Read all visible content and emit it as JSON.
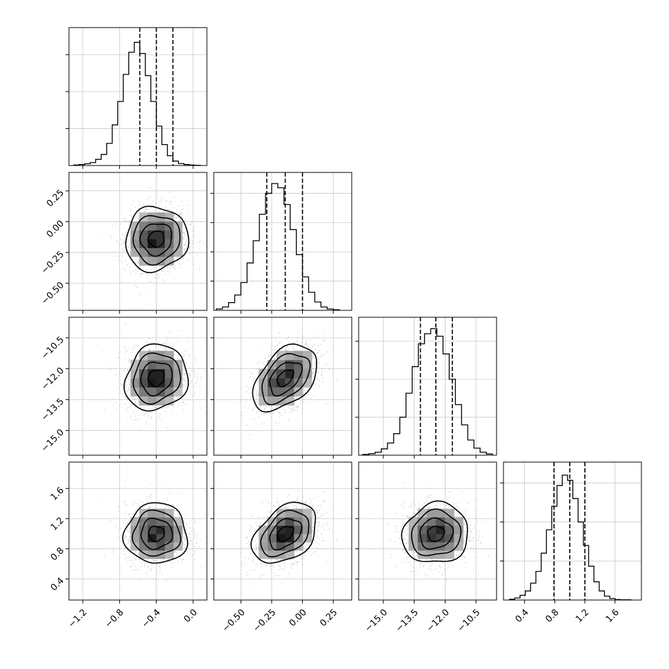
{
  "chart_data": {
    "type": "corner-plot",
    "grid": true,
    "colors": {
      "hist_line": "#000000",
      "contour": "#000000",
      "points": "#9a9a9a",
      "grid": "#c8c8c8",
      "axes": "#000000"
    },
    "parameters": [
      {
        "range": [
          -1.35,
          0.15
        ],
        "ticks": [
          -1.2,
          -0.8,
          -0.4,
          0.0
        ],
        "tick_labels": [
          "−1.2",
          "−0.8",
          "−0.4",
          "0.0"
        ],
        "mean": -0.4,
        "sigma": 0.17,
        "quantiles": [
          -0.58,
          -0.4,
          -0.22
        ],
        "hist": {
          "edges": [
            -1.3,
            -1.24,
            -1.18,
            -1.12,
            -1.06,
            -1.0,
            -0.94,
            -0.88,
            -0.82,
            -0.76,
            -0.7,
            -0.64,
            -0.58,
            -0.52,
            -0.46,
            -0.4,
            -0.34,
            -0.28,
            -0.22,
            -0.16,
            -0.1,
            -0.04,
            0.02,
            0.08
          ],
          "counts": [
            2,
            4,
            7,
            12,
            25,
            45,
            90,
            165,
            260,
            370,
            460,
            500,
            455,
            365,
            260,
            160,
            85,
            40,
            18,
            8,
            4,
            2,
            1
          ]
        },
        "hist_ylim": [
          0,
          560
        ],
        "hist_grid": [
          150,
          300,
          450
        ]
      },
      {
        "range": [
          -0.72,
          0.4
        ],
        "ticks": [
          -0.5,
          -0.25,
          0.0,
          0.25
        ],
        "tick_labels": [
          "−0.50",
          "−0.25",
          "0.00",
          "0.25"
        ],
        "mean": -0.14,
        "sigma": 0.13,
        "quantiles": [
          -0.29,
          -0.14,
          0.0
        ],
        "hist": {
          "edges": [
            -0.7,
            -0.65,
            -0.6,
            -0.55,
            -0.5,
            -0.45,
            -0.4,
            -0.35,
            -0.3,
            -0.25,
            -0.2,
            -0.15,
            -0.1,
            -0.05,
            0.0,
            0.05,
            0.1,
            0.15,
            0.2,
            0.25,
            0.3
          ],
          "counts": [
            5,
            12,
            28,
            55,
            100,
            170,
            250,
            345,
            420,
            455,
            440,
            380,
            290,
            200,
            120,
            65,
            30,
            12,
            5,
            2
          ]
        },
        "hist_ylim": [
          0,
          495
        ],
        "hist_grid": [
          105,
          210,
          315,
          420
        ]
      },
      {
        "range": [
          -16.2,
          -9.5
        ],
        "ticks": [
          -15.0,
          -13.5,
          -12.0,
          -10.5
        ],
        "tick_labels": [
          "−15.0",
          "−13.5",
          "−12.0",
          "−10.5"
        ],
        "mean": -12.45,
        "sigma": 0.8,
        "quantiles": [
          -13.2,
          -12.45,
          -11.65
        ],
        "hist": {
          "edges": [
            -16.0,
            -15.7,
            -15.4,
            -15.1,
            -14.8,
            -14.5,
            -14.2,
            -13.9,
            -13.6,
            -13.3,
            -13.0,
            -12.7,
            -12.4,
            -12.1,
            -11.8,
            -11.5,
            -11.2,
            -10.9,
            -10.6,
            -10.3,
            -10.0,
            -9.7
          ],
          "counts": [
            3,
            6,
            12,
            25,
            48,
            85,
            150,
            245,
            350,
            440,
            480,
            500,
            470,
            400,
            300,
            200,
            120,
            60,
            28,
            12,
            5
          ]
        },
        "hist_ylim": [
          0,
          545
        ],
        "hist_grid": [
          150,
          300,
          450
        ]
      },
      {
        "range": [
          0.12,
          1.95
        ],
        "ticks": [
          0.4,
          0.8,
          1.2,
          1.6
        ],
        "tick_labels": [
          "0.4",
          "0.8",
          "1.2",
          "1.6"
        ],
        "mean": 1.0,
        "sigma": 0.2,
        "quantiles": [
          0.79,
          1.0,
          1.2
        ],
        "hist": {
          "edges": [
            0.2,
            0.27,
            0.34,
            0.41,
            0.48,
            0.55,
            0.62,
            0.69,
            0.76,
            0.83,
            0.9,
            0.97,
            1.04,
            1.11,
            1.18,
            1.25,
            1.32,
            1.39,
            1.46,
            1.53,
            1.6,
            1.67,
            1.74,
            1.81
          ],
          "counts": [
            3,
            8,
            18,
            35,
            65,
            110,
            180,
            270,
            360,
            440,
            480,
            460,
            390,
            300,
            210,
            130,
            70,
            35,
            15,
            6,
            2,
            1,
            1
          ]
        },
        "hist_ylim": [
          0,
          530
        ],
        "hist_grid": [
          150,
          300,
          450
        ]
      }
    ],
    "pairs": [
      {
        "i": 1,
        "j": 0,
        "rho": 0.05
      },
      {
        "i": 2,
        "j": 0,
        "rho": 0.12
      },
      {
        "i": 2,
        "j": 1,
        "rho": 0.45
      },
      {
        "i": 3,
        "j": 0,
        "rho": 0.0
      },
      {
        "i": 3,
        "j": 1,
        "rho": 0.38
      },
      {
        "i": 3,
        "j": 2,
        "rho": 0.08
      }
    ],
    "contour_levels_sigma": [
      0.5,
      1.0,
      1.5,
      2.0
    ]
  }
}
